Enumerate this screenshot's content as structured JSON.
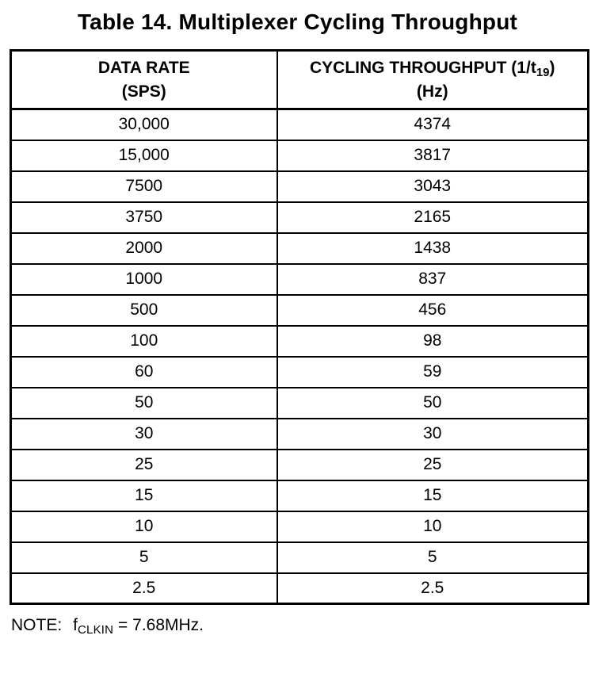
{
  "title": "Table 14. Multiplexer Cycling Throughput",
  "table": {
    "headers": {
      "col1": {
        "line1": "DATA RATE",
        "line2": "(SPS)"
      },
      "col2": {
        "line1_pre": "CYCLING THROUGHPUT (1/t",
        "line1_sub": "19",
        "line1_post": ")",
        "line2": "(Hz)"
      }
    },
    "rows": [
      {
        "data_rate": "30,000",
        "throughput": "4374"
      },
      {
        "data_rate": "15,000",
        "throughput": "3817"
      },
      {
        "data_rate": "7500",
        "throughput": "3043"
      },
      {
        "data_rate": "3750",
        "throughput": "2165"
      },
      {
        "data_rate": "2000",
        "throughput": "1438"
      },
      {
        "data_rate": "1000",
        "throughput": "837"
      },
      {
        "data_rate": "500",
        "throughput": "456"
      },
      {
        "data_rate": "100",
        "throughput": "98"
      },
      {
        "data_rate": "60",
        "throughput": "59"
      },
      {
        "data_rate": "50",
        "throughput": "50"
      },
      {
        "data_rate": "30",
        "throughput": "30"
      },
      {
        "data_rate": "25",
        "throughput": "25"
      },
      {
        "data_rate": "15",
        "throughput": "15"
      },
      {
        "data_rate": "10",
        "throughput": "10"
      },
      {
        "data_rate": "5",
        "throughput": "5"
      },
      {
        "data_rate": "2.5",
        "throughput": "2.5"
      }
    ]
  },
  "note": {
    "label": "NOTE:",
    "symbol_base": "f",
    "symbol_sub": "CLKIN",
    "value": " = 7.68MHz."
  },
  "colors": {
    "background": "#ffffff",
    "text": "#000000",
    "border": "#000000"
  }
}
